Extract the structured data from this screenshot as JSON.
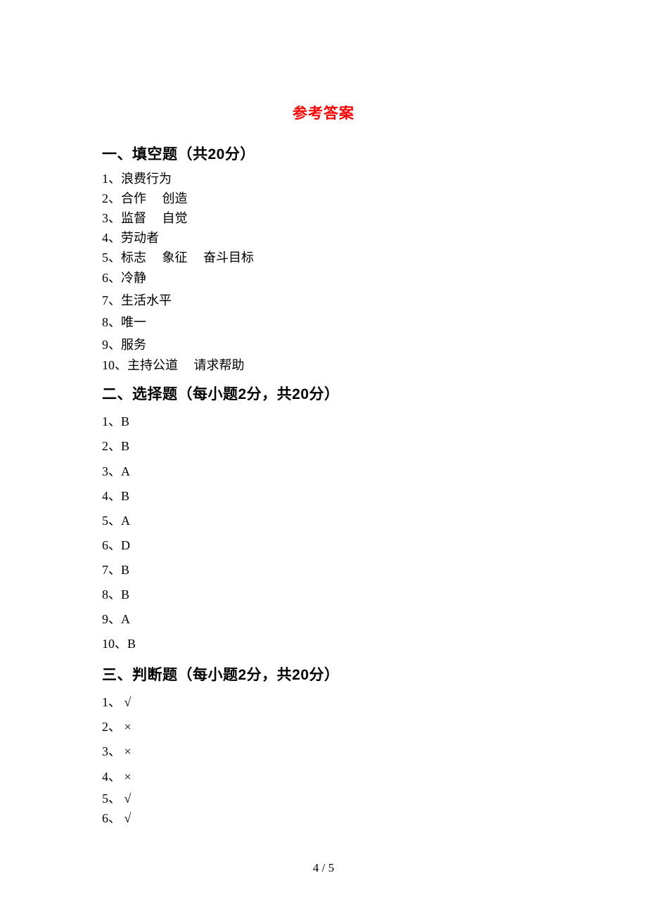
{
  "title": "参考答案",
  "title_color": "#ff0000",
  "sections": {
    "s1": {
      "heading": "一、填空题（共20分）",
      "a1": "1、浪费行为",
      "a2": "2、合作     创造",
      "a3": "3、监督     自觉",
      "a4": "4、劳动者",
      "a5": "5、标志     象征     奋斗目标",
      "a6": "6、冷静",
      "a7": "7、生活水平",
      "a8": "8、唯一",
      "a9": "9、服务",
      "a10": "10、主持公道     请求帮助"
    },
    "s2": {
      "heading": "二、选择题（每小题2分，共20分）",
      "a1": "1、B",
      "a2": "2、B",
      "a3": "3、A",
      "a4": "4、B",
      "a5": "5、A",
      "a6": "6、D",
      "a7": "7、B",
      "a8": "8、B",
      "a9": "9、A",
      "a10": "10、B"
    },
    "s3": {
      "heading": "三、判断题（每小题2分，共20分）",
      "a1": "1、 √",
      "a2": "2、 ×",
      "a3": "3、 ×",
      "a4": "4、 ×",
      "a5": "5、 √",
      "a6": "6、 √"
    }
  },
  "page_number": "4 / 5"
}
